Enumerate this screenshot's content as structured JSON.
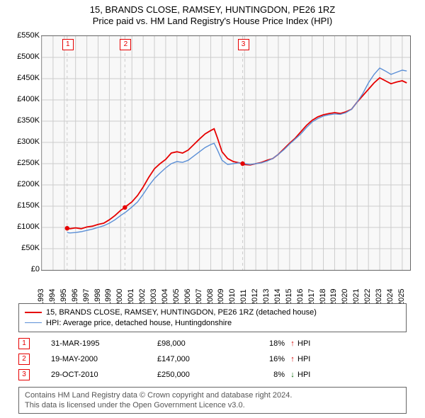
{
  "title_line1": "15, BRANDS CLOSE, RAMSEY, HUNTINGDON, PE26 1RZ",
  "title_line2": "Price paid vs. HM Land Registry's House Price Index (HPI)",
  "chart": {
    "type": "line",
    "background_color": "#f8f8f8",
    "grid_color": "#cccccc",
    "border_color": "#666666",
    "x_years": [
      1993,
      1994,
      1995,
      1996,
      1997,
      1998,
      1999,
      2000,
      2001,
      2002,
      2003,
      2004,
      2005,
      2006,
      2007,
      2008,
      2009,
      2010,
      2011,
      2012,
      2013,
      2014,
      2015,
      2016,
      2017,
      2018,
      2019,
      2020,
      2021,
      2022,
      2023,
      2024,
      2025
    ],
    "xlim": [
      1993,
      2025.7
    ],
    "ylim": [
      0,
      550000
    ],
    "y_ticks": [
      0,
      50000,
      100000,
      150000,
      200000,
      250000,
      300000,
      350000,
      400000,
      450000,
      500000,
      550000
    ],
    "y_tick_labels": [
      "£0",
      "£50K",
      "£100K",
      "£150K",
      "£200K",
      "£250K",
      "£300K",
      "£350K",
      "£400K",
      "£450K",
      "£500K",
      "£550K"
    ],
    "series": [
      {
        "id": "price_paid",
        "color": "#e60000",
        "line_width": 1.8,
        "data": [
          [
            1995.25,
            98000
          ],
          [
            1995.5,
            97000
          ],
          [
            1996,
            99000
          ],
          [
            1996.5,
            97000
          ],
          [
            1997,
            101000
          ],
          [
            1997.5,
            103000
          ],
          [
            1998,
            107000
          ],
          [
            1998.5,
            110000
          ],
          [
            1999,
            118000
          ],
          [
            1999.5,
            128000
          ],
          [
            2000,
            140000
          ],
          [
            2000.38,
            147000
          ],
          [
            2000.5,
            150000
          ],
          [
            2001,
            160000
          ],
          [
            2001.5,
            175000
          ],
          [
            2002,
            195000
          ],
          [
            2002.5,
            218000
          ],
          [
            2003,
            238000
          ],
          [
            2003.5,
            250000
          ],
          [
            2004,
            260000
          ],
          [
            2004.5,
            275000
          ],
          [
            2005,
            278000
          ],
          [
            2005.5,
            275000
          ],
          [
            2006,
            282000
          ],
          [
            2006.5,
            295000
          ],
          [
            2007,
            308000
          ],
          [
            2007.5,
            320000
          ],
          [
            2008,
            328000
          ],
          [
            2008.3,
            332000
          ],
          [
            2008.6,
            310000
          ],
          [
            2009,
            278000
          ],
          [
            2009.5,
            262000
          ],
          [
            2010,
            255000
          ],
          [
            2010.5,
            252000
          ],
          [
            2010.83,
            250000
          ],
          [
            2011,
            248000
          ],
          [
            2011.5,
            247000
          ],
          [
            2012,
            250000
          ],
          [
            2012.5,
            253000
          ],
          [
            2013,
            258000
          ],
          [
            2013.5,
            262000
          ],
          [
            2014,
            272000
          ],
          [
            2014.5,
            285000
          ],
          [
            2015,
            298000
          ],
          [
            2015.5,
            310000
          ],
          [
            2016,
            325000
          ],
          [
            2016.5,
            340000
          ],
          [
            2017,
            352000
          ],
          [
            2017.5,
            360000
          ],
          [
            2018,
            365000
          ],
          [
            2018.5,
            368000
          ],
          [
            2019,
            370000
          ],
          [
            2019.5,
            368000
          ],
          [
            2020,
            372000
          ],
          [
            2020.5,
            378000
          ],
          [
            2021,
            395000
          ],
          [
            2021.5,
            410000
          ],
          [
            2022,
            425000
          ],
          [
            2022.5,
            440000
          ],
          [
            2023,
            452000
          ],
          [
            2023.5,
            445000
          ],
          [
            2024,
            438000
          ],
          [
            2024.5,
            442000
          ],
          [
            2025,
            445000
          ],
          [
            2025.4,
            440000
          ]
        ]
      },
      {
        "id": "hpi",
        "color": "#5b8fd6",
        "line_width": 1.4,
        "data": [
          [
            1995.25,
            88000
          ],
          [
            1995.5,
            87000
          ],
          [
            1996,
            88000
          ],
          [
            1996.5,
            90000
          ],
          [
            1997,
            93000
          ],
          [
            1997.5,
            96000
          ],
          [
            1998,
            100000
          ],
          [
            1998.5,
            104000
          ],
          [
            1999,
            110000
          ],
          [
            1999.5,
            118000
          ],
          [
            2000,
            128000
          ],
          [
            2000.5,
            137000
          ],
          [
            2001,
            148000
          ],
          [
            2001.5,
            160000
          ],
          [
            2002,
            178000
          ],
          [
            2002.5,
            198000
          ],
          [
            2003,
            215000
          ],
          [
            2003.5,
            228000
          ],
          [
            2004,
            240000
          ],
          [
            2004.5,
            250000
          ],
          [
            2005,
            255000
          ],
          [
            2005.5,
            253000
          ],
          [
            2006,
            258000
          ],
          [
            2006.5,
            268000
          ],
          [
            2007,
            278000
          ],
          [
            2007.5,
            288000
          ],
          [
            2008,
            295000
          ],
          [
            2008.3,
            298000
          ],
          [
            2008.6,
            282000
          ],
          [
            2009,
            258000
          ],
          [
            2009.5,
            248000
          ],
          [
            2010,
            250000
          ],
          [
            2010.5,
            252000
          ],
          [
            2011,
            250000
          ],
          [
            2011.5,
            248000
          ],
          [
            2012,
            250000
          ],
          [
            2012.5,
            252000
          ],
          [
            2013,
            256000
          ],
          [
            2013.5,
            262000
          ],
          [
            2014,
            272000
          ],
          [
            2014.5,
            283000
          ],
          [
            2015,
            296000
          ],
          [
            2015.5,
            308000
          ],
          [
            2016,
            320000
          ],
          [
            2016.5,
            335000
          ],
          [
            2017,
            348000
          ],
          [
            2017.5,
            356000
          ],
          [
            2018,
            362000
          ],
          [
            2018.5,
            365000
          ],
          [
            2019,
            367000
          ],
          [
            2019.5,
            366000
          ],
          [
            2020,
            370000
          ],
          [
            2020.5,
            378000
          ],
          [
            2021,
            395000
          ],
          [
            2021.5,
            415000
          ],
          [
            2022,
            440000
          ],
          [
            2022.5,
            460000
          ],
          [
            2023,
            475000
          ],
          [
            2023.5,
            468000
          ],
          [
            2024,
            460000
          ],
          [
            2024.5,
            465000
          ],
          [
            2025,
            470000
          ],
          [
            2025.4,
            468000
          ]
        ]
      }
    ],
    "sale_points": [
      {
        "n": "1",
        "x": 1995.25,
        "y": 98000
      },
      {
        "n": "2",
        "x": 2000.38,
        "y": 147000
      },
      {
        "n": "3",
        "x": 2010.83,
        "y": 250000
      }
    ],
    "point_color": "#e60000",
    "point_radius": 3.2
  },
  "legend": {
    "items": [
      {
        "color": "#e60000",
        "width": 2,
        "label": "15, BRANDS CLOSE, RAMSEY, HUNTINGDON, PE26 1RZ (detached house)"
      },
      {
        "color": "#5b8fd6",
        "width": 1.4,
        "label": "HPI: Average price, detached house, Huntingdonshire"
      }
    ]
  },
  "sales": [
    {
      "n": "1",
      "date": "31-MAR-1995",
      "price": "£98,000",
      "delta": "18%",
      "dir": "up",
      "vs": "HPI"
    },
    {
      "n": "2",
      "date": "19-MAY-2000",
      "price": "£147,000",
      "delta": "16%",
      "dir": "up",
      "vs": "HPI"
    },
    {
      "n": "3",
      "date": "29-OCT-2010",
      "price": "£250,000",
      "delta": "8%",
      "dir": "down",
      "vs": "HPI"
    }
  ],
  "footer_line1": "Contains HM Land Registry data © Crown copyright and database right 2024.",
  "footer_line2": "This data is licensed under the Open Government Licence v3.0.",
  "arrow_up": "↑",
  "arrow_down": "↓"
}
